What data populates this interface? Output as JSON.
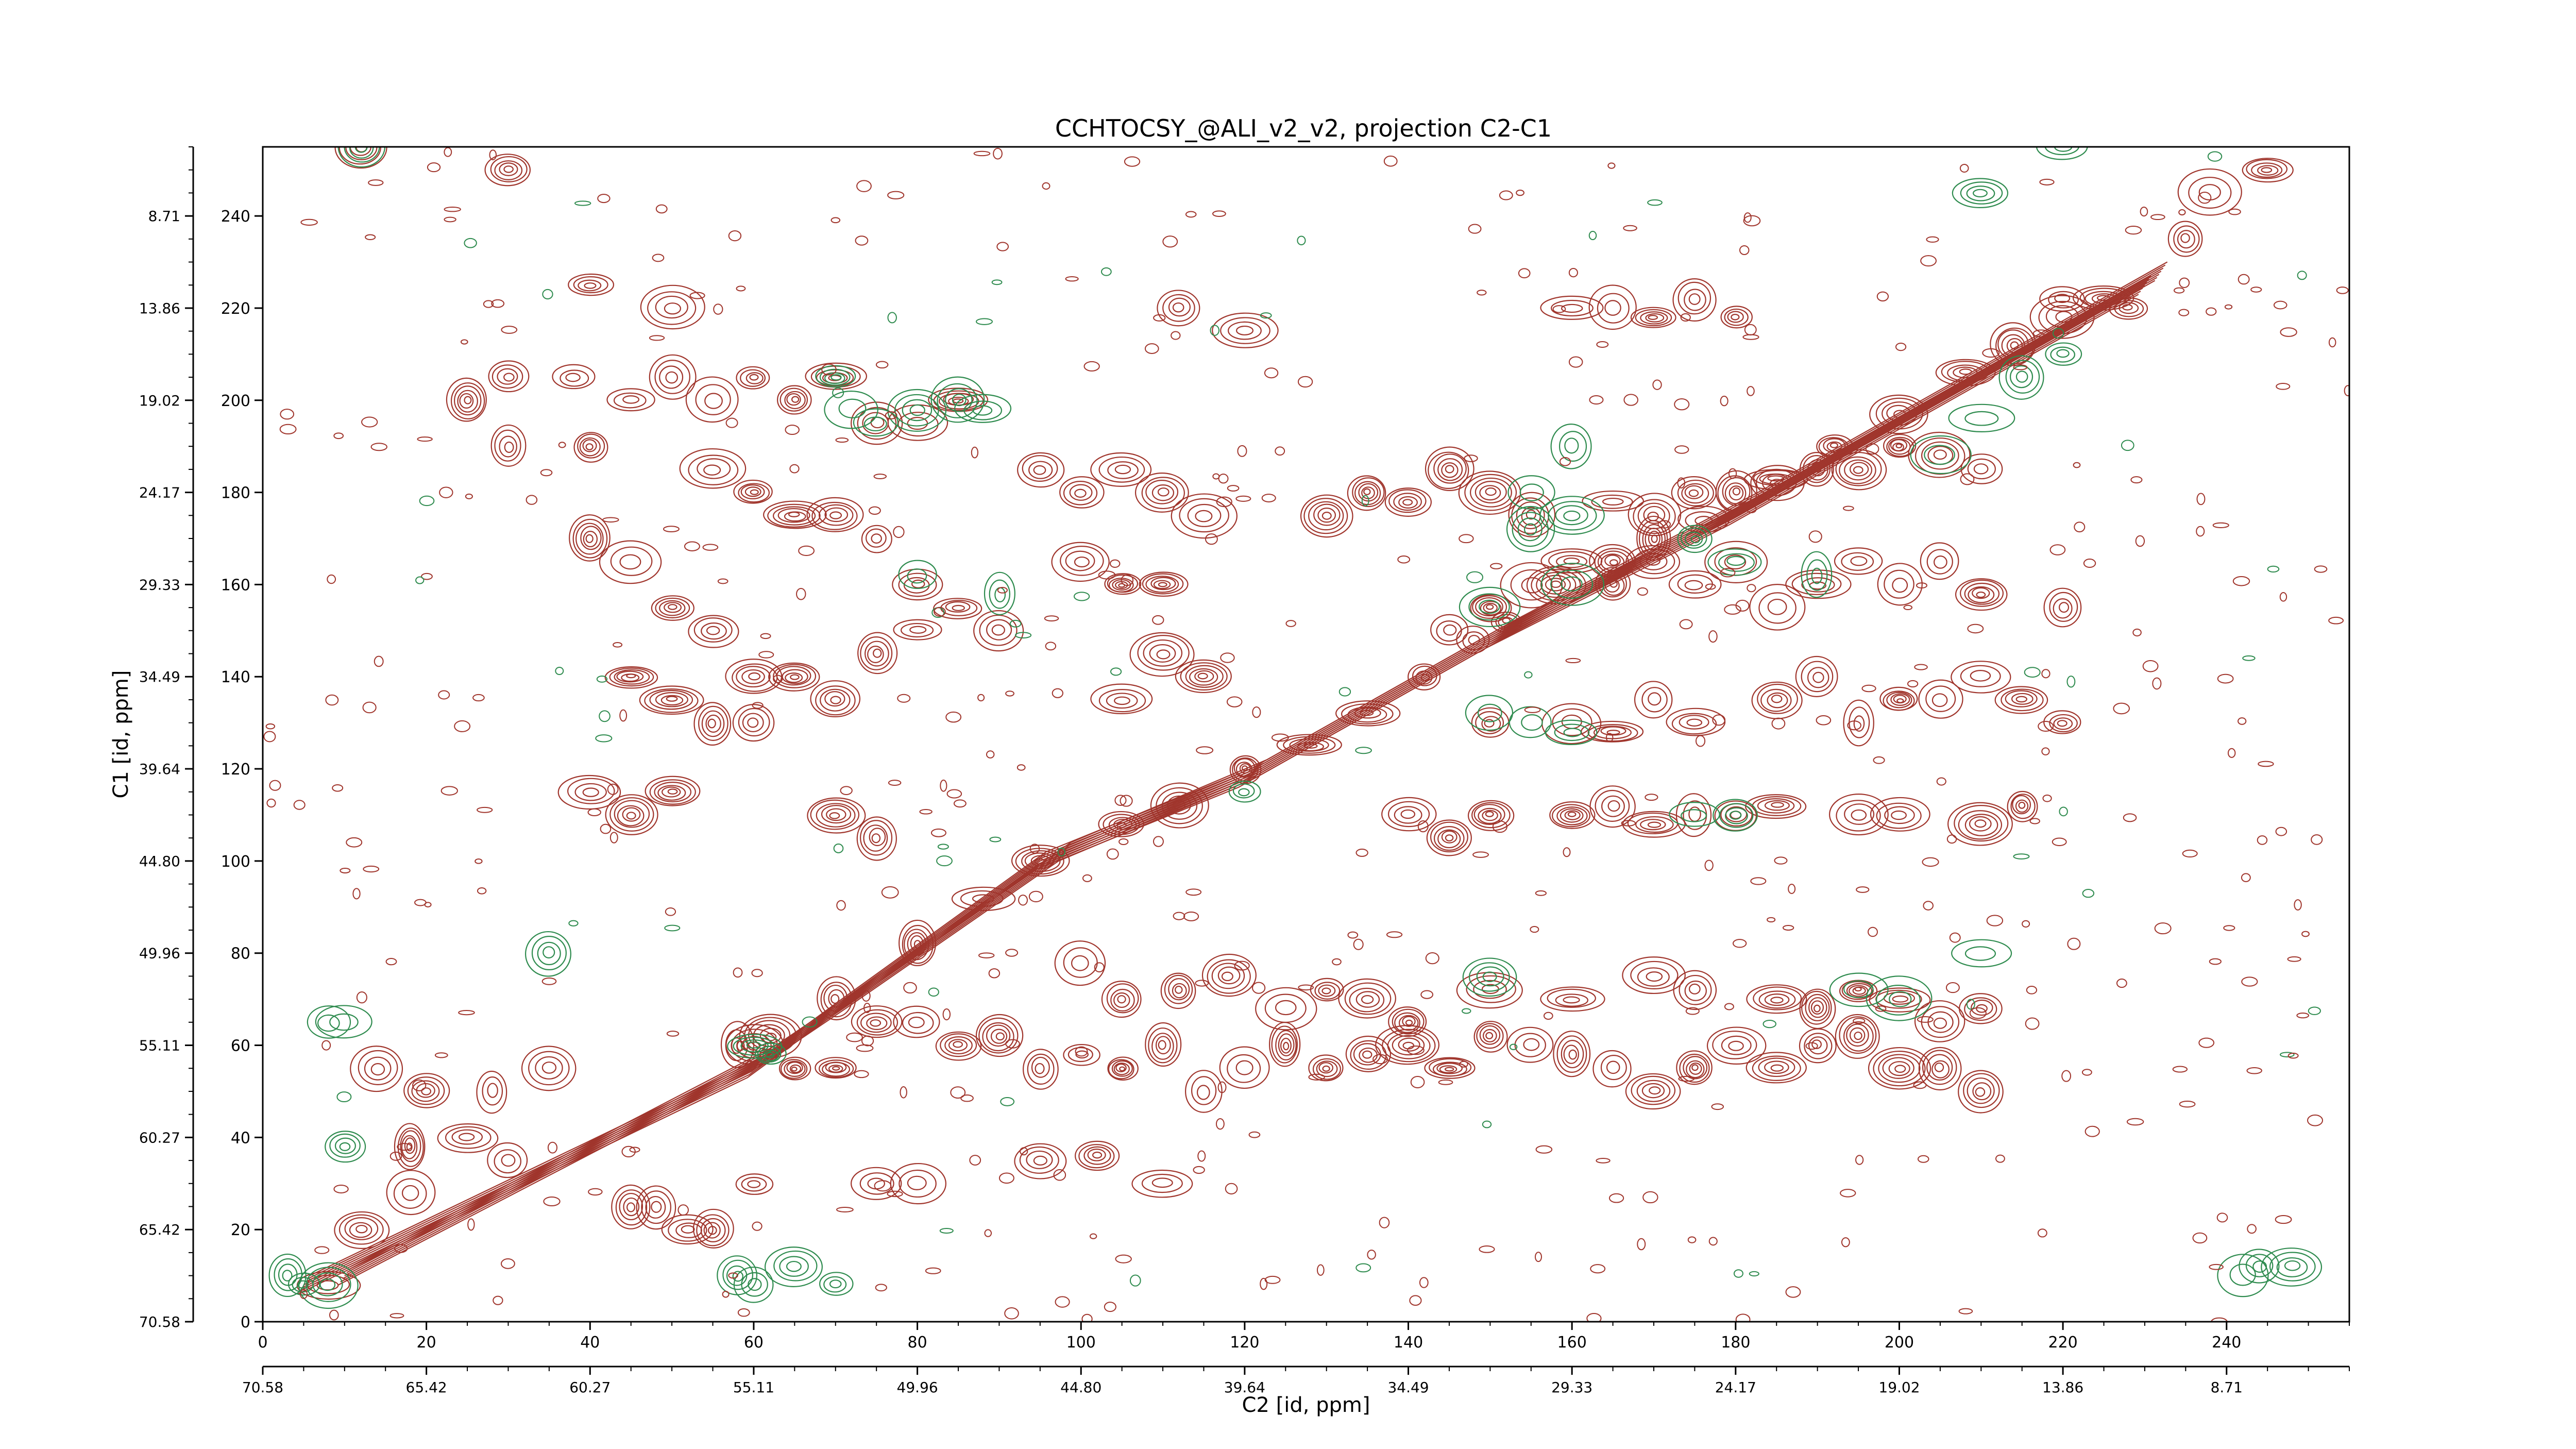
{
  "chart_data": {
    "type": "contour",
    "title": "CCHTOCSY_@ALI_v2_v2, projection C2-C1",
    "xlabel": "C2 [id, ppm]",
    "ylabel": "C1 [id, ppm]",
    "xlim": [
      0,
      255
    ],
    "ylim": [
      0,
      255
    ],
    "x_index_ticks": [
      0,
      20,
      40,
      60,
      80,
      100,
      120,
      140,
      160,
      180,
      200,
      220,
      240
    ],
    "y_index_ticks": [
      0,
      20,
      40,
      60,
      80,
      100,
      120,
      140,
      160,
      180,
      200,
      220,
      240
    ],
    "x_ppm_ticks": [
      "70.58",
      "65.42",
      "60.27",
      "55.11",
      "49.96",
      "44.80",
      "39.64",
      "34.49",
      "29.33",
      "24.17",
      "19.02",
      "13.86",
      "8.71"
    ],
    "y_ppm_ticks": [
      "70.58",
      "65.42",
      "60.27",
      "55.11",
      "49.96",
      "44.80",
      "39.64",
      "34.49",
      "29.33",
      "24.17",
      "19.02",
      "13.86",
      "8.71"
    ],
    "ppm_tick_spacing_index": 20,
    "grid": false,
    "colors": {
      "positive": "#a0352c",
      "negative": "#2e8b4e"
    },
    "peaks_positive": [
      [
        8,
        8
      ],
      [
        12,
        20
      ],
      [
        18,
        28
      ],
      [
        25,
        40
      ],
      [
        30,
        35
      ],
      [
        35,
        55
      ],
      [
        45,
        25
      ],
      [
        52,
        20
      ],
      [
        58,
        60
      ],
      [
        62,
        62
      ],
      [
        70,
        70
      ],
      [
        80,
        82
      ],
      [
        88,
        92
      ],
      [
        95,
        100
      ],
      [
        105,
        108
      ],
      [
        112,
        112
      ],
      [
        120,
        120
      ],
      [
        128,
        125
      ],
      [
        135,
        132
      ],
      [
        142,
        140
      ],
      [
        148,
        148
      ],
      [
        152,
        152
      ],
      [
        158,
        160
      ],
      [
        165,
        165
      ],
      [
        170,
        170
      ],
      [
        176,
        174
      ],
      [
        185,
        183
      ],
      [
        192,
        190
      ],
      [
        200,
        197
      ],
      [
        208,
        206
      ],
      [
        214,
        212
      ],
      [
        220,
        218
      ],
      [
        228,
        220
      ],
      [
        14,
        55
      ],
      [
        20,
        50
      ],
      [
        28,
        50
      ],
      [
        18,
        38
      ],
      [
        48,
        25
      ],
      [
        55,
        20
      ],
      [
        60,
        30
      ],
      [
        75,
        30
      ],
      [
        80,
        30
      ],
      [
        95,
        35
      ],
      [
        102,
        36
      ],
      [
        110,
        30
      ],
      [
        60,
        60
      ],
      [
        65,
        55
      ],
      [
        70,
        55
      ],
      [
        75,
        65
      ],
      [
        80,
        65
      ],
      [
        85,
        60
      ],
      [
        90,
        62
      ],
      [
        95,
        55
      ],
      [
        100,
        58
      ],
      [
        105,
        55
      ],
      [
        110,
        60
      ],
      [
        115,
        50
      ],
      [
        120,
        55
      ],
      [
        125,
        60
      ],
      [
        130,
        55
      ],
      [
        135,
        58
      ],
      [
        140,
        60
      ],
      [
        145,
        55
      ],
      [
        150,
        62
      ],
      [
        155,
        60
      ],
      [
        160,
        58
      ],
      [
        165,
        55
      ],
      [
        170,
        50
      ],
      [
        175,
        55
      ],
      [
        180,
        60
      ],
      [
        185,
        55
      ],
      [
        190,
        60
      ],
      [
        195,
        62
      ],
      [
        200,
        55
      ],
      [
        205,
        55
      ],
      [
        210,
        50
      ],
      [
        100,
        78
      ],
      [
        105,
        70
      ],
      [
        112,
        72
      ],
      [
        118,
        75
      ],
      [
        125,
        68
      ],
      [
        130,
        72
      ],
      [
        135,
        70
      ],
      [
        140,
        65
      ],
      [
        150,
        72
      ],
      [
        160,
        70
      ],
      [
        170,
        75
      ],
      [
        175,
        72
      ],
      [
        185,
        70
      ],
      [
        190,
        68
      ],
      [
        195,
        72
      ],
      [
        200,
        70
      ],
      [
        205,
        65
      ],
      [
        210,
        68
      ],
      [
        140,
        110
      ],
      [
        145,
        105
      ],
      [
        150,
        110
      ],
      [
        160,
        110
      ],
      [
        165,
        112
      ],
      [
        170,
        108
      ],
      [
        175,
        110
      ],
      [
        180,
        110
      ],
      [
        185,
        112
      ],
      [
        195,
        110
      ],
      [
        200,
        110
      ],
      [
        210,
        108
      ],
      [
        215,
        112
      ],
      [
        150,
        130
      ],
      [
        160,
        130
      ],
      [
        165,
        128
      ],
      [
        170,
        135
      ],
      [
        175,
        130
      ],
      [
        185,
        135
      ],
      [
        190,
        140
      ],
      [
        195,
        130
      ],
      [
        200,
        135
      ],
      [
        205,
        135
      ],
      [
        210,
        140
      ],
      [
        215,
        135
      ],
      [
        220,
        130
      ],
      [
        145,
        150
      ],
      [
        150,
        155
      ],
      [
        155,
        160
      ],
      [
        160,
        165
      ],
      [
        165,
        160
      ],
      [
        170,
        165
      ],
      [
        175,
        160
      ],
      [
        180,
        165
      ],
      [
        185,
        155
      ],
      [
        190,
        160
      ],
      [
        195,
        165
      ],
      [
        200,
        160
      ],
      [
        205,
        165
      ],
      [
        210,
        158
      ],
      [
        220,
        155
      ],
      [
        130,
        175
      ],
      [
        135,
        180
      ],
      [
        140,
        178
      ],
      [
        145,
        185
      ],
      [
        150,
        180
      ],
      [
        155,
        175
      ],
      [
        165,
        178
      ],
      [
        170,
        175
      ],
      [
        175,
        180
      ],
      [
        180,
        180
      ],
      [
        185,
        182
      ],
      [
        190,
        185
      ],
      [
        195,
        185
      ],
      [
        200,
        190
      ],
      [
        205,
        188
      ],
      [
        210,
        185
      ],
      [
        95,
        185
      ],
      [
        100,
        180
      ],
      [
        105,
        185
      ],
      [
        110,
        180
      ],
      [
        115,
        175
      ],
      [
        100,
        165
      ],
      [
        105,
        160
      ],
      [
        110,
        160
      ],
      [
        110,
        145
      ],
      [
        115,
        140
      ],
      [
        105,
        135
      ],
      [
        25,
        200
      ],
      [
        30,
        205
      ],
      [
        38,
        205
      ],
      [
        45,
        200
      ],
      [
        50,
        205
      ],
      [
        55,
        200
      ],
      [
        60,
        205
      ],
      [
        65,
        200
      ],
      [
        70,
        205
      ],
      [
        75,
        195
      ],
      [
        80,
        195
      ],
      [
        85,
        200
      ],
      [
        30,
        190
      ],
      [
        40,
        190
      ],
      [
        55,
        185
      ],
      [
        60,
        180
      ],
      [
        65,
        175
      ],
      [
        70,
        175
      ],
      [
        75,
        170
      ],
      [
        80,
        160
      ],
      [
        85,
        155
      ],
      [
        90,
        150
      ],
      [
        60,
        140
      ],
      [
        65,
        140
      ],
      [
        70,
        135
      ],
      [
        75,
        145
      ],
      [
        80,
        150
      ],
      [
        40,
        170
      ],
      [
        45,
        165
      ],
      [
        50,
        155
      ],
      [
        55,
        150
      ],
      [
        45,
        140
      ],
      [
        50,
        135
      ],
      [
        55,
        130
      ],
      [
        60,
        130
      ],
      [
        40,
        115
      ],
      [
        45,
        110
      ],
      [
        50,
        115
      ],
      [
        70,
        110
      ],
      [
        75,
        105
      ],
      [
        112,
        220
      ],
      [
        120,
        215
      ],
      [
        160,
        220
      ],
      [
        165,
        220
      ],
      [
        170,
        218
      ],
      [
        175,
        222
      ],
      [
        180,
        218
      ],
      [
        220,
        222
      ],
      [
        225,
        222
      ],
      [
        235,
        235
      ],
      [
        238,
        245
      ],
      [
        245,
        250
      ],
      [
        12,
        255
      ],
      [
        30,
        250
      ],
      [
        40,
        225
      ],
      [
        50,
        220
      ]
    ],
    "peaks_negative": [
      [
        8,
        8
      ],
      [
        10,
        38
      ],
      [
        60,
        60
      ],
      [
        62,
        58
      ],
      [
        35,
        80
      ],
      [
        120,
        115
      ],
      [
        150,
        75
      ],
      [
        195,
        72
      ],
      [
        200,
        70
      ],
      [
        210,
        80
      ],
      [
        150,
        155
      ],
      [
        160,
        160
      ],
      [
        155,
        172
      ],
      [
        160,
        175
      ],
      [
        155,
        180
      ],
      [
        160,
        190
      ],
      [
        175,
        170
      ],
      [
        180,
        165
      ],
      [
        190,
        162
      ],
      [
        205,
        188
      ],
      [
        210,
        196
      ],
      [
        215,
        205
      ],
      [
        220,
        210
      ],
      [
        210,
        245
      ],
      [
        220,
        255
      ],
      [
        12,
        255
      ],
      [
        70,
        205
      ],
      [
        72,
        198
      ],
      [
        75,
        195
      ],
      [
        80,
        198
      ],
      [
        85,
        200
      ],
      [
        88,
        198
      ],
      [
        80,
        162
      ],
      [
        90,
        158
      ],
      [
        150,
        132
      ],
      [
        155,
        130
      ],
      [
        160,
        128
      ],
      [
        175,
        110
      ],
      [
        180,
        110
      ],
      [
        8,
        65
      ],
      [
        10,
        65
      ],
      [
        242,
        10
      ],
      [
        248,
        12
      ],
      [
        244,
        12
      ],
      [
        60,
        8
      ],
      [
        58,
        10
      ],
      [
        65,
        12
      ],
      [
        70,
        8
      ],
      [
        5,
        8
      ],
      [
        3,
        10
      ]
    ],
    "ridges": [
      [
        [
          5,
          8
        ],
        [
          60,
          55
        ],
        [
          70,
          68
        ],
        [
          95,
          100
        ],
        [
          120,
          118
        ],
        [
          150,
          148
        ],
        [
          180,
          175
        ],
        [
          210,
          205
        ],
        [
          230,
          225
        ]
      ],
      [
        [
          10,
          10
        ],
        [
          62,
          58
        ],
        [
          72,
          70
        ],
        [
          98,
          102
        ],
        [
          122,
          120
        ],
        [
          152,
          150
        ],
        [
          182,
          178
        ],
        [
          212,
          208
        ],
        [
          232,
          228
        ]
      ]
    ]
  }
}
